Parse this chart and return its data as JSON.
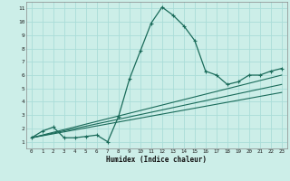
{
  "xlabel": "Humidex (Indice chaleur)",
  "bg_color": "#cceee8",
  "grid_color": "#aaddd8",
  "line_color": "#1a6b5a",
  "xlim": [
    -0.5,
    23.5
  ],
  "ylim": [
    0.5,
    11.5
  ],
  "xticks": [
    0,
    1,
    2,
    3,
    4,
    5,
    6,
    7,
    8,
    9,
    10,
    11,
    12,
    13,
    14,
    15,
    16,
    17,
    18,
    19,
    20,
    21,
    22,
    23
  ],
  "yticks": [
    1,
    2,
    3,
    4,
    5,
    6,
    7,
    8,
    9,
    10,
    11
  ],
  "series": [
    {
      "x": [
        0,
        1,
        2,
        3,
        4,
        5,
        6,
        7,
        8,
        9,
        10,
        11,
        12,
        13,
        14,
        15,
        16,
        17,
        18,
        19,
        20,
        21,
        22,
        23
      ],
      "y": [
        1.3,
        1.8,
        2.1,
        1.3,
        1.3,
        1.4,
        1.5,
        1.0,
        2.9,
        5.7,
        7.8,
        9.9,
        11.1,
        10.5,
        9.7,
        8.6,
        6.3,
        6.0,
        5.3,
        5.5,
        6.0,
        6.0,
        6.3,
        6.5
      ],
      "has_markers": true
    },
    {
      "x": [
        0,
        23
      ],
      "y": [
        1.3,
        6.0
      ],
      "has_markers": false
    },
    {
      "x": [
        0,
        23
      ],
      "y": [
        1.3,
        5.3
      ],
      "has_markers": false
    },
    {
      "x": [
        0,
        23
      ],
      "y": [
        1.3,
        4.7
      ],
      "has_markers": false
    }
  ]
}
